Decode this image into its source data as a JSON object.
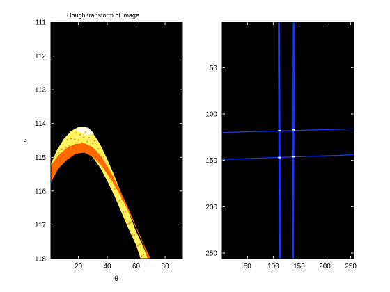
{
  "chart_data": [
    {
      "type": "heatmap",
      "title": "Hough transform of image",
      "xlabel": "θ",
      "ylabel": "ϵ",
      "xlim": [
        1,
        92
      ],
      "ylim": [
        111,
        118
      ],
      "y_reversed": true,
      "xticks": [
        20,
        40,
        60,
        80
      ],
      "yticks": [
        111,
        112,
        113,
        114,
        115,
        116,
        117,
        118
      ],
      "background": "#000000",
      "colors": {
        "outer": "#fff25a",
        "peak": "#ffffff",
        "core": "#ff6a00",
        "texture": "#d24a00"
      },
      "band_outer": {
        "theta_rho_top": [
          [
            1,
            115.2
          ],
          [
            5,
            114.8
          ],
          [
            10,
            114.45
          ],
          [
            15,
            114.22
          ],
          [
            20,
            114.1
          ],
          [
            25,
            114.1
          ],
          [
            30,
            114.28
          ],
          [
            35,
            114.6
          ],
          [
            40,
            115.05
          ],
          [
            45,
            115.55
          ],
          [
            50,
            116.1
          ],
          [
            55,
            116.65
          ],
          [
            60,
            117.2
          ],
          [
            65,
            117.65
          ],
          [
            68,
            118
          ]
        ],
        "theta_rho_bottom": [
          [
            1,
            115.75
          ],
          [
            5,
            115.35
          ],
          [
            10,
            115.05
          ],
          [
            15,
            114.9
          ],
          [
            20,
            114.82
          ],
          [
            25,
            114.85
          ],
          [
            30,
            115.0
          ],
          [
            35,
            115.3
          ],
          [
            40,
            115.7
          ],
          [
            45,
            116.15
          ],
          [
            50,
            116.65
          ],
          [
            55,
            117.15
          ],
          [
            60,
            117.6
          ],
          [
            63,
            118
          ]
        ]
      },
      "band_core": {
        "theta_rho_top": [
          [
            1,
            115.25
          ],
          [
            6,
            114.95
          ],
          [
            12,
            114.72
          ],
          [
            18,
            114.6
          ],
          [
            24,
            114.58
          ],
          [
            30,
            114.7
          ],
          [
            36,
            114.98
          ],
          [
            42,
            115.4
          ],
          [
            48,
            115.9
          ],
          [
            54,
            116.45
          ],
          [
            60,
            117.05
          ],
          [
            66,
            117.65
          ],
          [
            70,
            118
          ]
        ],
        "theta_rho_bottom": [
          [
            1,
            115.75
          ],
          [
            6,
            115.35
          ],
          [
            12,
            115.08
          ],
          [
            18,
            114.9
          ],
          [
            24,
            114.86
          ],
          [
            30,
            114.98
          ],
          [
            36,
            115.25
          ],
          [
            42,
            115.62
          ],
          [
            48,
            116.05
          ],
          [
            54,
            116.55
          ],
          [
            60,
            117.1
          ],
          [
            65,
            117.6
          ],
          [
            68,
            118
          ]
        ]
      }
    },
    {
      "type": "heatmap",
      "title": "",
      "xlabel": "",
      "ylabel": "",
      "xlim": [
        1,
        256
      ],
      "ylim": [
        1,
        256
      ],
      "y_reversed": true,
      "xticks": [
        50,
        100,
        150,
        200,
        250
      ],
      "yticks": [
        50,
        100,
        150,
        200,
        250
      ],
      "background": "#000000",
      "colors": {
        "line": "#1436ff",
        "intersection": "#ffffff"
      },
      "lines": [
        {
          "x1": 111,
          "y1": 1,
          "x2": 113,
          "y2": 256
        },
        {
          "x1": 140,
          "y1": 1,
          "x2": 138,
          "y2": 256
        },
        {
          "x1": 1,
          "y1": 120,
          "x2": 256,
          "y2": 116
        },
        {
          "x1": 1,
          "y1": 149,
          "x2": 256,
          "y2": 144
        }
      ],
      "intersections": [
        {
          "x": 112,
          "y": 118
        },
        {
          "x": 139,
          "y": 117
        },
        {
          "x": 112,
          "y": 147
        },
        {
          "x": 139,
          "y": 146
        }
      ]
    }
  ]
}
